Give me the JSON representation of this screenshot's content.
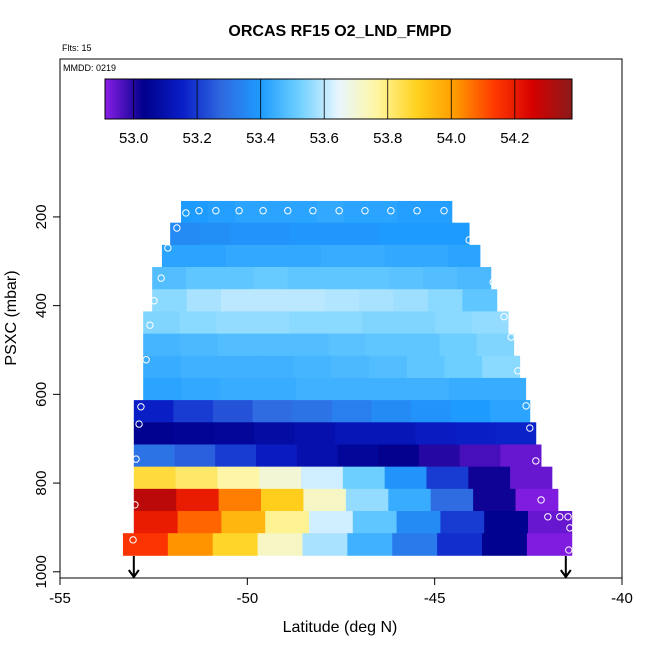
{
  "chart_data": {
    "type": "heatmap",
    "title": "ORCAS RF15 O2_LND_FMPD",
    "flights": "Flts: 15",
    "date": "MMDD: 0219",
    "xlabel": "Latitude (deg N)",
    "ylabel": "PSXC (mbar)",
    "xlim": [
      -55,
      -40
    ],
    "xticks": [
      -55,
      -50,
      -45,
      -40
    ],
    "ylim": [
      1014,
      -156
    ],
    "yticks": [
      200,
      400,
      600,
      800,
      1000
    ],
    "colorbar": {
      "lim": [
        52.91,
        54.38
      ],
      "ticks": [
        {
          "value": 53,
          "label": "53.0"
        },
        53.2,
        53.4,
        53.6,
        53.8,
        {
          "value": 54,
          "label": "54.0"
        },
        54.2
      ],
      "colors": [
        "#8a1ee6",
        "#00008b",
        "#0a1fc8",
        "#2f6ae0",
        "#1e9bff",
        "#6fd0ff",
        "#e8f6ff",
        "#fff6a0",
        "#ffd21e",
        "#ff9a00",
        "#ff3a00",
        "#d50000",
        "#8b1a1a"
      ]
    },
    "rows": [
      {
        "pressure": [
          164,
          213
        ],
        "lat": [
          -51.77,
          -44.54
        ],
        "values": [
          53.4,
          53.41,
          53.42,
          53.42,
          53.42,
          53.43,
          53.42,
          53.42,
          53.41,
          53.41
        ]
      },
      {
        "pressure": [
          213,
          263
        ],
        "lat": [
          -52.06,
          -44.08
        ],
        "values": [
          53.36,
          53.37,
          53.38,
          53.38,
          53.39,
          53.39,
          53.39,
          53.4,
          53.4,
          53.4
        ]
      },
      {
        "pressure": [
          263,
          313
        ],
        "lat": [
          -52.28,
          -43.79
        ],
        "values": [
          53.42,
          53.42,
          53.43,
          53.43,
          53.43,
          53.44,
          53.44,
          53.43,
          53.43,
          53.42
        ]
      },
      {
        "pressure": [
          313,
          363
        ],
        "lat": [
          -52.54,
          -43.5
        ],
        "values": [
          53.48,
          53.5,
          53.5,
          53.51,
          53.5,
          53.5,
          53.5,
          53.49,
          53.48,
          53.47
        ]
      },
      {
        "pressure": [
          363,
          413
        ],
        "lat": [
          -52.54,
          -43.34
        ],
        "values": [
          53.55,
          53.58,
          53.6,
          53.6,
          53.6,
          53.59,
          53.58,
          53.57,
          53.55,
          53.5
        ]
      },
      {
        "pressure": [
          413,
          463
        ],
        "lat": [
          -52.78,
          -43.04
        ],
        "values": [
          53.54,
          53.55,
          53.56,
          53.56,
          53.55,
          53.55,
          53.54,
          53.54,
          53.55,
          53.56
        ]
      },
      {
        "pressure": [
          463,
          513
        ],
        "lat": [
          -52.78,
          -42.89
        ],
        "values": [
          53.46,
          53.47,
          53.48,
          53.48,
          53.48,
          53.49,
          53.5,
          53.5,
          53.52,
          53.54
        ]
      },
      {
        "pressure": [
          513,
          563
        ],
        "lat": [
          -52.78,
          -42.73
        ],
        "values": [
          53.44,
          53.45,
          53.45,
          53.45,
          53.46,
          53.47,
          53.48,
          53.5,
          53.52,
          53.55
        ]
      },
      {
        "pressure": [
          563,
          613
        ],
        "lat": [
          -52.78,
          -42.57
        ],
        "values": [
          53.42,
          53.43,
          53.44,
          53.44,
          53.45,
          53.45,
          53.45,
          53.45,
          53.44,
          53.44
        ]
      },
      {
        "pressure": [
          613,
          663
        ],
        "lat": [
          -53.03,
          -42.46
        ],
        "values": [
          53.15,
          53.2,
          53.24,
          53.28,
          53.3,
          53.33,
          53.36,
          53.38,
          53.4,
          53.42
        ]
      },
      {
        "pressure": [
          663,
          713
        ],
        "lat": [
          -53.03,
          -42.3
        ],
        "values": [
          53.04,
          53.05,
          53.06,
          53.08,
          53.1,
          53.12,
          53.12,
          53.14,
          53.15,
          53.16
        ]
      },
      {
        "pressure": [
          713,
          763
        ],
        "lat": [
          -53.03,
          -42.16
        ],
        "values": [
          53.3,
          53.26,
          53.2,
          53.14,
          53.1,
          53.06,
          53.03,
          53.0,
          52.97,
          52.94
        ]
      },
      {
        "pressure": [
          763,
          813
        ],
        "lat": [
          -53.03,
          -41.87
        ],
        "values": [
          53.86,
          53.82,
          53.76,
          53.7,
          53.62,
          53.52,
          53.38,
          53.2,
          53.02,
          52.94
        ]
      },
      {
        "pressure": [
          813,
          863
        ],
        "lat": [
          -53.03,
          -41.71
        ],
        "values": [
          54.3,
          54.2,
          54.05,
          53.9,
          53.72,
          53.56,
          53.44,
          53.28,
          53.02,
          52.92
        ]
      },
      {
        "pressure": [
          863,
          913
        ],
        "lat": [
          -53.03,
          -41.34
        ],
        "values": [
          54.2,
          54.08,
          53.95,
          53.78,
          53.62,
          53.5,
          53.36,
          53.2,
          53.04,
          52.94
        ]
      },
      {
        "pressure": [
          913,
          963
        ],
        "lat": [
          -53.32,
          -41.34
        ],
        "values": [
          54.15,
          54.02,
          53.88,
          53.72,
          53.58,
          53.45,
          53.32,
          53.18,
          53.04,
          52.92
        ]
      }
    ],
    "track": {
      "color": "#ffffff",
      "x": [
        -51.64,
        -51.29,
        -50.84,
        -50.22,
        -49.58,
        -48.92,
        -48.25,
        -47.55,
        -46.86,
        -46.17,
        -45.47,
        -44.75,
        -51.88,
        -52.12,
        -44.08,
        -52.3,
        -43.44,
        -52.49,
        -52.6,
        -43.15,
        -42.96,
        -52.7,
        -42.78,
        -52.84,
        -42.56,
        -52.89,
        -42.46,
        -52.97,
        -42.3,
        -42.16,
        -53.0,
        -41.98,
        -41.66,
        -41.44,
        -41.39,
        -53.05,
        -41.42
      ],
      "y": [
        191,
        186,
        186,
        186,
        186,
        186,
        186,
        186,
        186,
        186,
        186,
        186,
        225,
        270,
        252,
        338,
        347,
        389,
        444,
        425,
        471,
        522,
        547,
        628,
        626,
        667,
        676,
        746,
        750,
        838,
        849,
        876,
        876,
        876,
        901,
        928,
        951
      ]
    },
    "arrows": [
      -53.03,
      -41.5
    ]
  }
}
